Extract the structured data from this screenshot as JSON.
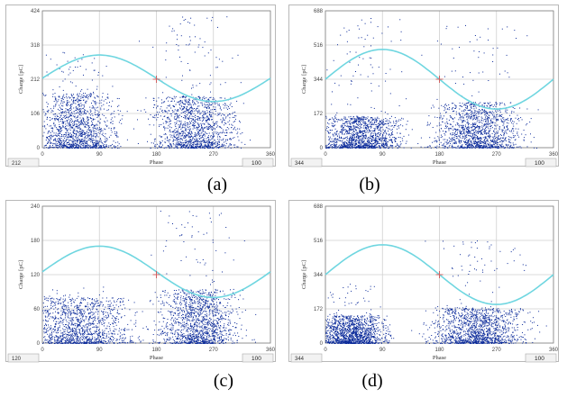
{
  "figure": {
    "captions": [
      "(a)",
      "(b)",
      "(c)",
      "(d)"
    ]
  },
  "colors": {
    "background": "#ffffff",
    "grid": "#cfcfcf",
    "axis": "#808080",
    "scatter": "#0a2a9a",
    "sine": "#6fd6e0",
    "marker": "#d06060"
  },
  "chart_data": [
    {
      "type": "scatter",
      "panel": "a",
      "xlabel": "Phase",
      "ylabel": "Charge [pC]",
      "xlim": [
        0,
        360
      ],
      "ylim": [
        0,
        424
      ],
      "xticks": [
        0,
        90,
        180,
        270,
        360
      ],
      "yticks": [
        0,
        106,
        212,
        318,
        424
      ],
      "ytick_labels": [
        "0",
        "106",
        "212",
        "318",
        "424"
      ],
      "status_left": "212",
      "status_right": "100",
      "clusters": [
        {
          "center": 55,
          "spread": 30,
          "height": 170,
          "peak": 300
        },
        {
          "center": 240,
          "spread": 32,
          "height": 160,
          "peak": 420
        }
      ],
      "sine": {
        "offset": 215,
        "amplitude": 72
      },
      "marker": {
        "x": 180,
        "y": 212
      }
    },
    {
      "type": "scatter",
      "panel": "b",
      "xlabel": "Phase",
      "ylabel": "Charge [pC]",
      "xlim": [
        0,
        360
      ],
      "ylim": [
        0,
        688
      ],
      "xticks": [
        0,
        90,
        180,
        270,
        360
      ],
      "yticks": [
        0,
        172,
        344,
        516,
        688
      ],
      "ytick_labels": [
        "0",
        "172",
        "344",
        "516",
        "688"
      ],
      "status_left": "344",
      "status_right": "100",
      "clusters": [
        {
          "center": 55,
          "spread": 30,
          "height": 160,
          "peak": 680
        },
        {
          "center": 240,
          "spread": 32,
          "height": 230,
          "peak": 620
        }
      ],
      "sine": {
        "offset": 344,
        "amplitude": 150
      },
      "marker": {
        "x": 180,
        "y": 344
      }
    },
    {
      "type": "scatter",
      "panel": "c",
      "xlabel": "Phase",
      "ylabel": "Charge [pC]",
      "xlim": [
        0,
        360
      ],
      "ylim": [
        0,
        240
      ],
      "xticks": [
        0,
        90,
        180,
        270,
        360
      ],
      "yticks": [
        0,
        60,
        120,
        180,
        240
      ],
      "ytick_labels": [
        "0",
        "60",
        "120",
        "180",
        "240"
      ],
      "status_left": "120",
      "status_right": "100",
      "clusters": [
        {
          "center": 55,
          "spread": 40,
          "height": 80,
          "peak": 100
        },
        {
          "center": 245,
          "spread": 30,
          "height": 95,
          "peak": 235
        }
      ],
      "sine": {
        "offset": 125,
        "amplitude": 45
      },
      "marker": {
        "x": 180,
        "y": 120
      }
    },
    {
      "type": "scatter",
      "panel": "d",
      "xlabel": "Phase",
      "ylabel": "Charge [pC]",
      "xlim": [
        0,
        360
      ],
      "ylim": [
        0,
        688
      ],
      "xticks": [
        0,
        90,
        180,
        270,
        360
      ],
      "yticks": [
        0,
        172,
        344,
        516,
        688
      ],
      "ytick_labels": [
        "0",
        "172",
        "344",
        "516",
        "688"
      ],
      "status_left": "344",
      "status_right": "100",
      "clusters": [
        {
          "center": 40,
          "spread": 25,
          "height": 140,
          "peak": 300
        },
        {
          "center": 240,
          "spread": 35,
          "height": 180,
          "peak": 520
        }
      ],
      "sine": {
        "offset": 344,
        "amplitude": 150
      },
      "marker": {
        "x": 180,
        "y": 344
      }
    }
  ]
}
